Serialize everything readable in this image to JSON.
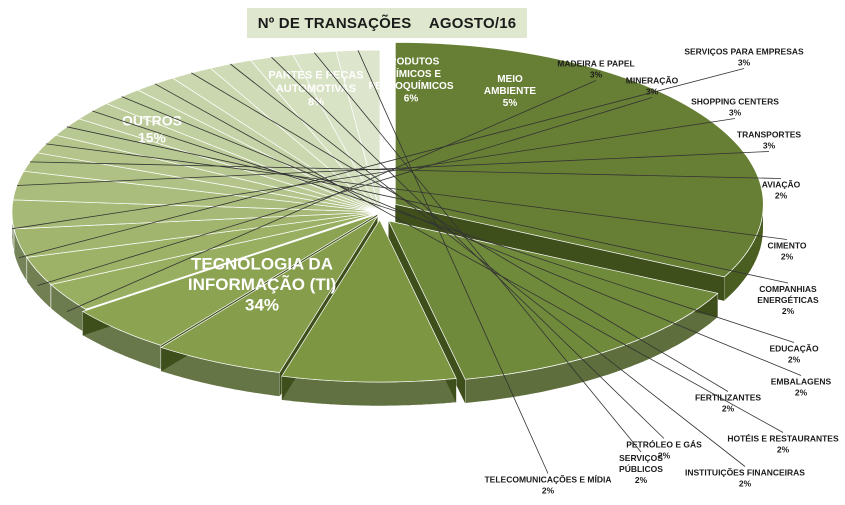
{
  "chart_data": {
    "type": "pie",
    "title": "Nº DE TRANSAÇÕES",
    "subtitle": "AGOSTO/16",
    "slices": [
      {
        "label": "TECNOLOGIA DA INFORMAÇÃO (TI)",
        "lines": [
          "TECNOLOGIA DA",
          "INFORMAÇÃO (TI)"
        ],
        "value": 34,
        "display": "34%"
      },
      {
        "label": "OUTROS",
        "lines": [
          "OUTROS"
        ],
        "value": 15,
        "display": "15%"
      },
      {
        "label": "PARTES E PEÇAS AUTOMOTIVAS",
        "lines": [
          "PARTES E PEÇAS",
          "AUTOMOTIVAS"
        ],
        "value": 8,
        "display": "8%"
      },
      {
        "label": "PRODUTOS QUÍMICOS E PETROQUÍMICOS",
        "lines": [
          "PRODUTOS",
          "QUÍMICOS E",
          "PETROQUÍMICOS"
        ],
        "value": 6,
        "display": "6%"
      },
      {
        "label": "MEIO AMBIENTE",
        "lines": [
          "MEIO",
          "AMBIENTE"
        ],
        "value": 5,
        "display": "5%"
      },
      {
        "label": "MADEIRA E PAPEL",
        "lines": [
          "MADEIRA E PAPEL"
        ],
        "value": 3,
        "display": "3%"
      },
      {
        "label": "MINERAÇÃO",
        "lines": [
          "MINERAÇÃO"
        ],
        "value": 3,
        "display": "3%"
      },
      {
        "label": "SERVIÇOS PARA EMPRESAS",
        "lines": [
          "SERVIÇOS PARA EMPRESAS"
        ],
        "value": 3,
        "display": "3%"
      },
      {
        "label": "SHOPPING CENTERS",
        "lines": [
          "SHOPPING CENTERS"
        ],
        "value": 3,
        "display": "3%"
      },
      {
        "label": "TRANSPORTES",
        "lines": [
          "TRANSPORTES"
        ],
        "value": 3,
        "display": "3%"
      },
      {
        "label": "AVIAÇÃO",
        "lines": [
          "AVIAÇÃO"
        ],
        "value": 2,
        "display": "2%"
      },
      {
        "label": "CIMENTO",
        "lines": [
          "CIMENTO"
        ],
        "value": 2,
        "display": "2%"
      },
      {
        "label": "COMPANHIAS ENERGÉTICAS",
        "lines": [
          "COMPANHIAS",
          "ENERGÉTICAS"
        ],
        "value": 2,
        "display": "2%"
      },
      {
        "label": "EDUCAÇÃO",
        "lines": [
          "EDUCAÇÃO"
        ],
        "value": 2,
        "display": "2%"
      },
      {
        "label": "EMBALAGENS",
        "lines": [
          "EMBALAGENS"
        ],
        "value": 2,
        "display": "2%"
      },
      {
        "label": "HOTÉIS E RESTAURANTES",
        "lines": [
          "HOTÉIS E RESTAURANTES"
        ],
        "value": 2,
        "display": "2%"
      },
      {
        "label": "FERTILIZANTES",
        "lines": [
          "FERTILIZANTES"
        ],
        "value": 2,
        "display": "2%"
      },
      {
        "label": "INSTITUIÇÕES FINANCEIRAS",
        "lines": [
          "INSTITUIÇÕES FINANCEIRAS"
        ],
        "value": 2,
        "display": "2%"
      },
      {
        "label": "PETRÓLEO E GÁS",
        "lines": [
          "PETRÓLEO E GÁS"
        ],
        "value": 2,
        "display": "2%"
      },
      {
        "label": "SERVIÇOS PÚBLICOS",
        "lines": [
          "SERVIÇOS",
          "PÚBLICOS"
        ],
        "value": 2,
        "display": "2%"
      },
      {
        "label": "TELECOMUNICAÇÕES E MÍDIA",
        "lines": [
          "TELECOMUNICAÇÕES E MÍDIA"
        ],
        "value": 2,
        "display": "2%"
      }
    ],
    "colors": {
      "dark_top": "#677f35",
      "mid_top": "#8ca352",
      "light_top": "#ccd9b3",
      "side_dark": "#4b5e22",
      "side_light": "#8c9a78",
      "title_bg": "#dfe8cf"
    },
    "legend": "none",
    "style": "3d-exploded"
  }
}
